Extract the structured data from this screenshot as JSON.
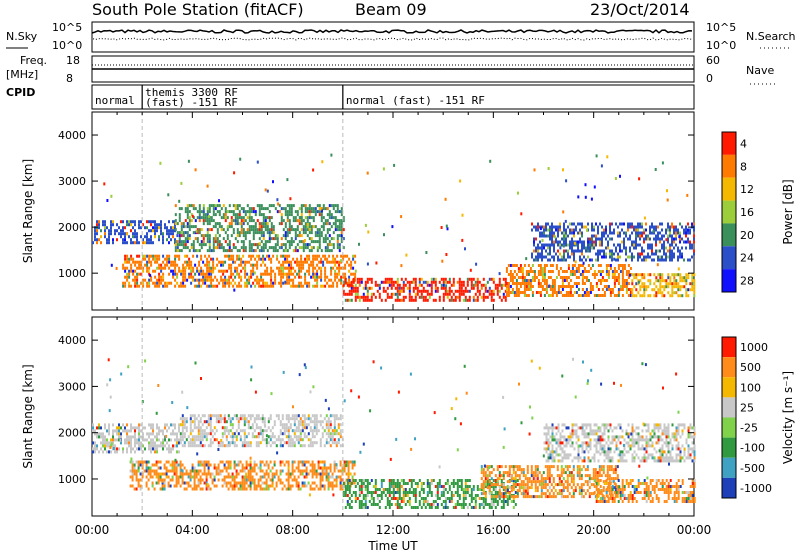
{
  "header": {
    "title": "South Pole Station (fitACF)",
    "beam": "Beam 09",
    "date": "23/Oct/2014"
  },
  "top_panels": {
    "nsky_label": "N.Sky",
    "nsearch_label": "N.Search",
    "freq_label_1": "Freq.",
    "freq_label_2": "[MHz]",
    "nave_label": "Nave",
    "cpid_label": "CPID",
    "nsky_ticks": [
      "10^5",
      "10^0"
    ],
    "nsearch_ticks": [
      "10^5",
      "10^0"
    ],
    "freq_ticks": [
      "18",
      "8"
    ],
    "nave_ticks": [
      "60",
      "0"
    ]
  },
  "cpid_segments": [
    {
      "start_hour": 0.0,
      "end_hour": 2.0,
      "line1": "normal",
      "line2": ""
    },
    {
      "start_hour": 2.0,
      "end_hour": 10.0,
      "line1": "themis 3300 RF",
      "line2": "(fast) -151 RF"
    },
    {
      "start_hour": 10.0,
      "end_hour": 24.0,
      "line1": "normal (fast) -151 RF",
      "line2": ""
    }
  ],
  "chart_data": [
    {
      "type": "heatmap",
      "name": "power-panel",
      "ylabel": "Slant Range [km]",
      "yticks": [
        "1000",
        "2000",
        "3000",
        "4000"
      ],
      "ylim": [
        200,
        4500
      ],
      "xlim": [
        0,
        24
      ],
      "colorbar_label": "Power [dB]",
      "colorbar_ticks": [
        "4",
        "8",
        "12",
        "16",
        "20",
        "24",
        "28"
      ],
      "colorbar_colors": [
        "#1010ff",
        "#2a4fc8",
        "#3a8f5a",
        "#9ccd3a",
        "#f5b800",
        "#ff7a00",
        "#ff1a00"
      ],
      "bands": [
        {
          "x0": 0.0,
          "x1": 3.3,
          "y0": 1650,
          "y1": 2150,
          "color": "#2a4fc8"
        },
        {
          "x0": 3.3,
          "x1": 10.0,
          "y0": 1500,
          "y1": 2500,
          "color": "#3a8f5a"
        },
        {
          "x0": 1.2,
          "x1": 10.5,
          "y0": 700,
          "y1": 1400,
          "color": "#ff7a00"
        },
        {
          "x0": 10.0,
          "x1": 16.5,
          "y0": 400,
          "y1": 900,
          "color": "#ff1a00"
        },
        {
          "x0": 16.5,
          "x1": 21.5,
          "y0": 500,
          "y1": 1200,
          "color": "#ff7a00"
        },
        {
          "x0": 17.5,
          "x1": 24.0,
          "y0": 1300,
          "y1": 2100,
          "color": "#2a4fc8"
        },
        {
          "x0": 21.5,
          "x1": 24.0,
          "y0": 500,
          "y1": 1000,
          "color": "#f5b800"
        }
      ]
    },
    {
      "type": "heatmap",
      "name": "velocity-panel",
      "ylabel": "Slant Range [km]",
      "yticks": [
        "1000",
        "2000",
        "3000",
        "4000"
      ],
      "ylim": [
        200,
        4500
      ],
      "xlim": [
        0,
        24
      ],
      "xticks": [
        "00:00",
        "04:00",
        "08:00",
        "12:00",
        "16:00",
        "20:00",
        "00:00"
      ],
      "xlabel": "Time UT",
      "colorbar_label": "Velocity [m s⁻¹]",
      "colorbar_ticks": [
        "1000",
        "500",
        "100",
        "25",
        "-25",
        "-100",
        "-500",
        "-1000"
      ],
      "colorbar_colors": [
        "#1d3fb8",
        "#3fa2c2",
        "#2f9a3f",
        "#7fd24a",
        "#c8c8c8",
        "#f5b800",
        "#ff8c1a",
        "#ff1a00"
      ],
      "bands": [
        {
          "x0": 0.0,
          "x1": 3.5,
          "y0": 1600,
          "y1": 2200,
          "color": "#c8c8c8"
        },
        {
          "x0": 3.5,
          "x1": 10.0,
          "y0": 1700,
          "y1": 2400,
          "color": "#c8c8c8"
        },
        {
          "x0": 1.5,
          "x1": 10.5,
          "y0": 800,
          "y1": 1400,
          "color": "#ff8c1a"
        },
        {
          "x0": 10.0,
          "x1": 17.0,
          "y0": 400,
          "y1": 1000,
          "color": "#2f9a3f"
        },
        {
          "x0": 15.5,
          "x1": 21.0,
          "y0": 600,
          "y1": 1300,
          "color": "#ff8c1a"
        },
        {
          "x0": 18.0,
          "x1": 24.0,
          "y0": 1400,
          "y1": 2200,
          "color": "#c8c8c8"
        },
        {
          "x0": 20.0,
          "x1": 24.0,
          "y0": 500,
          "y1": 1000,
          "color": "#ff8c1a"
        }
      ]
    }
  ]
}
